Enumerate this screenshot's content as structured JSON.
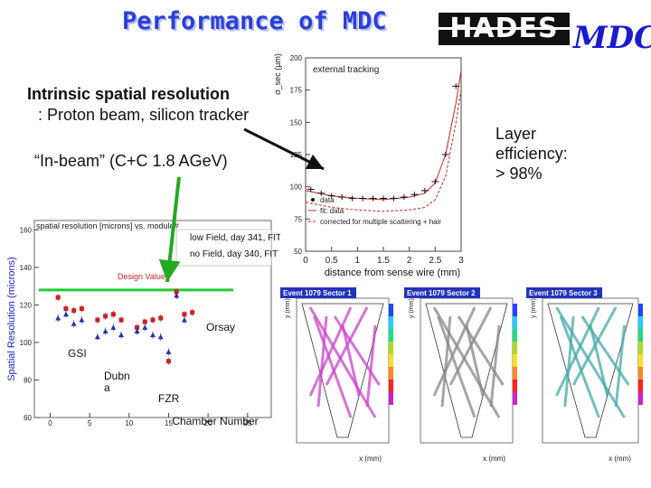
{
  "title": "Performance of MDC",
  "logos": {
    "hades": "HADES",
    "mdc": "MDC"
  },
  "intro": {
    "bold": "Intrinsic spatial resolution",
    "rest": ": Proton beam, silicon tracker"
  },
  "inbeam": "“In-beam” (C+C 1.8 AGeV)",
  "layer_efficiency": "Layer\nefficiency:\n> 98%",
  "chart_data": [
    {
      "type": "scatter",
      "title": "spatial resolution [microns] vs. module#",
      "ylabel": "Spatial Resolution (microns)",
      "xlabel": "Chamber Number",
      "xticks": [
        0,
        5,
        10,
        15,
        20,
        25
      ],
      "yticks": [
        60,
        80,
        100,
        120,
        140,
        160
      ],
      "xlim": [
        -2,
        28
      ],
      "ylim": [
        60,
        165
      ],
      "design_value": 128,
      "design_label": "Design Value",
      "legend": [
        "low Field, day 341, FIT",
        "no Field, day 340, FIT"
      ],
      "groups": [
        {
          "label": "Orsay"
        },
        {
          "label": "GSI"
        },
        {
          "label": "Dubn a"
        },
        {
          "label": "FZR"
        }
      ],
      "series": [
        {
          "name": "low Field, day 341, FIT",
          "color": "#cc2222",
          "marker": "square",
          "x": [
            1,
            2,
            3,
            4,
            6,
            7,
            8,
            9,
            11,
            12,
            13,
            14,
            15,
            16,
            17,
            18
          ],
          "y": [
            124,
            118,
            117,
            118,
            112,
            114,
            115,
            112,
            108,
            111,
            112,
            113,
            90,
            127,
            115,
            116
          ]
        },
        {
          "name": "no Field, day 340, FIT",
          "color": "#2233aa",
          "marker": "triangle",
          "x": [
            1,
            2,
            3,
            4,
            6,
            7,
            8,
            9,
            11,
            12,
            13,
            14,
            15,
            16,
            17
          ],
          "y": [
            113,
            115,
            110,
            112,
            103,
            106,
            108,
            104,
            106,
            108,
            104,
            103,
            95,
            125,
            112
          ]
        }
      ]
    },
    {
      "type": "line",
      "title": "external tracking",
      "ylabel": "σ_sec (µm)",
      "xlabel": "distance from sense wire (mm)",
      "xticks": [
        0,
        0.5,
        1,
        1.5,
        2,
        2.5,
        3
      ],
      "yticks": [
        50,
        75,
        100,
        125,
        150,
        175,
        200
      ],
      "xlim": [
        0,
        3
      ],
      "ylim": [
        50,
        200
      ],
      "legend": [
        "data",
        "fit: data",
        "corrected for multiple scattering + hair"
      ],
      "series": [
        {
          "name": "data",
          "color": "#111111",
          "x": [
            0.1,
            0.3,
            0.5,
            0.7,
            0.9,
            1.1,
            1.3,
            1.5,
            1.7,
            1.9,
            2.1,
            2.3,
            2.5,
            2.7,
            2.9
          ],
          "y": [
            98,
            95,
            93,
            92,
            91,
            91,
            91,
            91,
            91,
            92,
            94,
            97,
            104,
            125,
            178
          ]
        },
        {
          "name": "fit: data",
          "color": "#cc2222",
          "x": [
            0.0,
            0.5,
            1.0,
            1.5,
            2.0,
            2.3,
            2.5,
            2.7,
            2.9,
            3.0
          ],
          "y": [
            97,
            93,
            91,
            90,
            92,
            95,
            103,
            125,
            165,
            190
          ]
        },
        {
          "name": "corrected for multiple scattering + hair",
          "color": "#cc2222",
          "x": [
            0.0,
            0.5,
            1.0,
            1.5,
            2.0,
            2.3,
            2.5,
            2.7,
            2.9,
            3.0
          ],
          "y": [
            88,
            84,
            82,
            81,
            82,
            84,
            90,
            108,
            150,
            175
          ]
        }
      ]
    }
  ],
  "events": [
    {
      "title": "Event 1079 Sector 1",
      "xaxis": "x (mm)",
      "yaxis": "y (mm)",
      "color": "#cc44cc"
    },
    {
      "title": "Event 1079 Sector 2",
      "xaxis": "x (mm)",
      "yaxis": "y (mm)",
      "color": "#888888"
    },
    {
      "title": "Event 1079 Sector 3",
      "xaxis": "x (mm)",
      "yaxis": "y (mm)",
      "color": "#44aaaa"
    }
  ],
  "colors": {
    "title": "#2a3fd8",
    "design_line": "#22cc33",
    "arrow": "#111111",
    "arrow2": "#22aa22"
  }
}
